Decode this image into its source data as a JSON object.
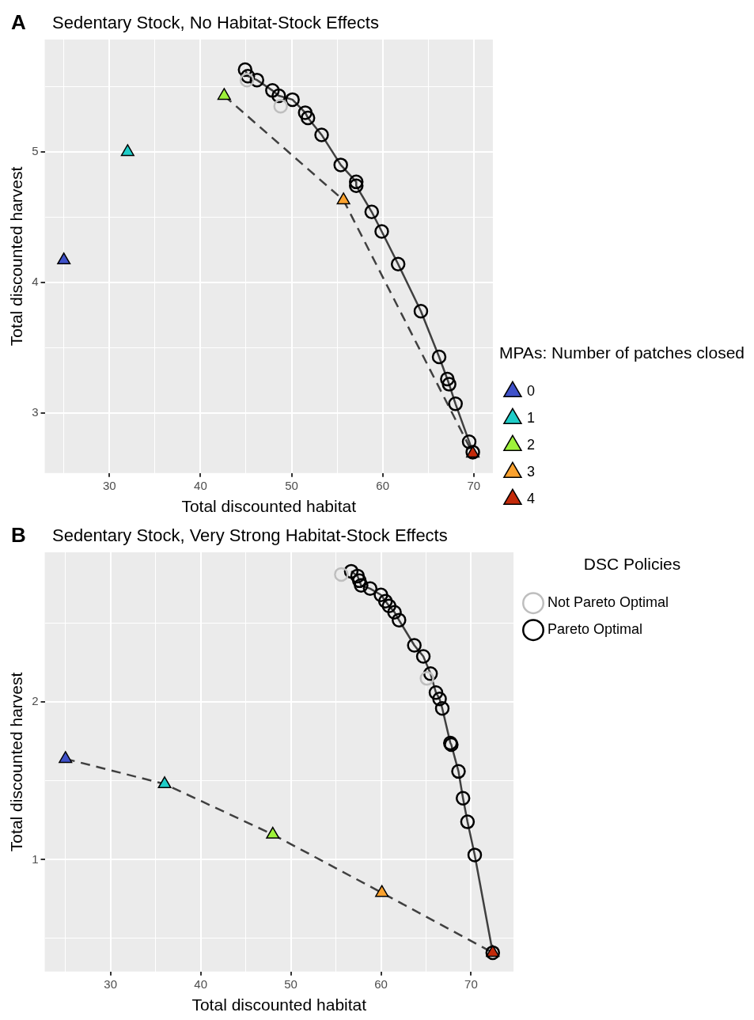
{
  "chart_data": [
    {
      "type": "scatter",
      "title": "Sedentary Stock, No Habitat-Stock Effects",
      "annotations": [
        "A"
      ],
      "xlabel": "Total discounted habitat",
      "ylabel": "Total discounted harvest",
      "xlim": [
        22.9,
        72.1
      ],
      "ylim": [
        2.54,
        5.86
      ],
      "xticks": [
        {
          "value": 25,
          "label": null
        },
        30,
        {
          "value": 35,
          "label": null
        },
        40,
        {
          "value": 45,
          "label": null
        },
        50,
        {
          "value": 55,
          "label": null
        },
        60,
        {
          "value": 65,
          "label": null
        },
        70
      ],
      "yticks": [
        3,
        {
          "value": 3.5,
          "label": null
        },
        4,
        {
          "value": 4.5,
          "label": null
        },
        5,
        {
          "value": 5.5,
          "label": null
        }
      ],
      "grid": true,
      "legend": "bottom right",
      "legend_title": "MPAs: Number of patches closed",
      "series": [
        {
          "type": "line",
          "color": "#404040",
          "line_style": "solid",
          "marker": "none",
          "x": [
            44.9,
            45.2,
            46.2,
            47.9,
            48.6,
            50.1,
            51.5,
            51.8,
            53.3,
            55.4,
            57.1,
            57.1,
            58.8,
            59.9,
            61.7,
            64.2,
            66.2,
            67.1,
            67.3,
            68.0,
            69.5,
            69.9
          ],
          "values": [
            5.63,
            5.58,
            5.55,
            5.47,
            5.43,
            5.4,
            5.3,
            5.26,
            5.13,
            4.9,
            4.77,
            4.74,
            4.54,
            4.39,
            4.14,
            3.78,
            3.43,
            3.26,
            3.22,
            3.07,
            2.78,
            2.7
          ]
        },
        {
          "type": "line",
          "color": "#404040",
          "line_style": "dashed",
          "marker": "none",
          "x": [
            42.6,
            55.7,
            69.9
          ],
          "values": [
            5.43,
            4.63,
            2.69
          ]
        },
        {
          "color": "#bebebe",
          "marker": "circle",
          "x": [
            45.1,
            48.8
          ],
          "values": [
            5.55,
            5.35
          ]
        },
        {
          "color": "#000000",
          "marker": "circle",
          "x": [
            44.9,
            45.2,
            46.2,
            47.9,
            48.6,
            50.1,
            51.5,
            51.8,
            53.3,
            55.4,
            57.1,
            57.1,
            58.8,
            59.9,
            61.7,
            64.2,
            66.2,
            67.1,
            67.3,
            68.0,
            69.5,
            69.9
          ],
          "values": [
            5.63,
            5.58,
            5.55,
            5.47,
            5.43,
            5.4,
            5.3,
            5.26,
            5.13,
            4.9,
            4.77,
            4.74,
            4.54,
            4.39,
            4.14,
            3.78,
            3.43,
            3.26,
            3.22,
            3.07,
            2.78,
            2.7
          ]
        },
        {
          "name": "0",
          "color": "#3f51c9",
          "marker": "triangle",
          "x": [
            25.0
          ],
          "values": [
            4.17
          ]
        },
        {
          "name": "1",
          "color": "#1fcdc8",
          "marker": "triangle",
          "x": [
            32.0
          ],
          "values": [
            5.0
          ]
        },
        {
          "name": "2",
          "color": "#9ef23a",
          "marker": "triangle",
          "x": [
            42.6
          ],
          "values": [
            5.43
          ]
        },
        {
          "name": "3",
          "color": "#fba22f",
          "marker": "triangle",
          "x": [
            55.7
          ],
          "values": [
            4.63
          ]
        },
        {
          "name": "4",
          "color": "#c42a0a",
          "marker": "triangle",
          "x": [
            69.9
          ],
          "values": [
            2.69
          ]
        }
      ]
    },
    {
      "type": "scatter",
      "title": "Sedentary Stock, Very Strong Habitat-Stock Effects",
      "annotations": [
        "B"
      ],
      "xlabel": "Total discounted habitat",
      "ylabel": "Total discounted harvest",
      "xlim": [
        22.7,
        74.7
      ],
      "ylim": [
        0.29,
        2.95
      ],
      "xticks": [
        {
          "value": 25,
          "label": null
        },
        30,
        {
          "value": 35,
          "label": null
        },
        40,
        {
          "value": 45,
          "label": null
        },
        50,
        {
          "value": 55,
          "label": null
        },
        60,
        {
          "value": 65,
          "label": null
        },
        70
      ],
      "yticks": [
        {
          "value": 0.5,
          "label": null
        },
        1,
        {
          "value": 1.5,
          "label": null
        },
        2,
        {
          "value": 2.5,
          "label": null
        }
      ],
      "grid": true,
      "legend": "top right",
      "legend_title": "DSC Policies",
      "series": [
        {
          "type": "line",
          "color": "#404040",
          "line_style": "solid",
          "marker": "none",
          "x": [
            56.7,
            57.4,
            57.6,
            57.8,
            58.8,
            60.0,
            60.5,
            60.9,
            61.5,
            62.0,
            63.7,
            64.7,
            65.5,
            66.1,
            66.5,
            66.8,
            67.7,
            67.8,
            68.6,
            69.1,
            69.6,
            70.4,
            72.4
          ],
          "values": [
            2.83,
            2.8,
            2.77,
            2.74,
            2.72,
            2.68,
            2.64,
            2.61,
            2.57,
            2.52,
            2.36,
            2.29,
            2.18,
            2.06,
            2.02,
            1.96,
            1.74,
            1.73,
            1.56,
            1.39,
            1.24,
            1.03,
            0.41
          ]
        },
        {
          "type": "line",
          "color": "#404040",
          "line_style": "dashed",
          "marker": "none",
          "x": [
            25.0,
            36.0,
            48.0,
            60.1,
            72.4
          ],
          "values": [
            1.64,
            1.48,
            1.16,
            0.79,
            0.41
          ]
        },
        {
          "name": "Not Pareto Optimal",
          "color": "#bebebe",
          "marker": "circle",
          "x": [
            55.6,
            65.1
          ],
          "values": [
            2.81,
            2.15
          ]
        },
        {
          "name": "Pareto Optimal",
          "color": "#000000",
          "marker": "circle",
          "x": [
            56.7,
            57.4,
            57.6,
            57.8,
            58.8,
            60.0,
            60.5,
            60.9,
            61.5,
            62.0,
            63.7,
            64.7,
            65.5,
            66.1,
            66.5,
            66.8,
            67.7,
            67.8,
            68.6,
            69.1,
            69.6,
            70.4,
            72.4
          ],
          "values": [
            2.83,
            2.8,
            2.77,
            2.74,
            2.72,
            2.68,
            2.64,
            2.61,
            2.57,
            2.52,
            2.36,
            2.29,
            2.18,
            2.06,
            2.02,
            1.96,
            1.74,
            1.73,
            1.56,
            1.39,
            1.24,
            1.03,
            0.41
          ]
        },
        {
          "color": "#3f51c9",
          "marker": "triangle",
          "x": [
            25.0
          ],
          "values": [
            1.64
          ]
        },
        {
          "color": "#1fcdc8",
          "marker": "triangle",
          "x": [
            36.0
          ],
          "values": [
            1.48
          ]
        },
        {
          "color": "#9ef23a",
          "marker": "triangle",
          "x": [
            48.0
          ],
          "values": [
            1.16
          ]
        },
        {
          "color": "#fba22f",
          "marker": "triangle",
          "x": [
            60.1
          ],
          "values": [
            0.79
          ]
        },
        {
          "color": "#c42a0a",
          "marker": "triangle",
          "x": [
            72.4
          ],
          "values": [
            0.41
          ]
        }
      ]
    }
  ]
}
